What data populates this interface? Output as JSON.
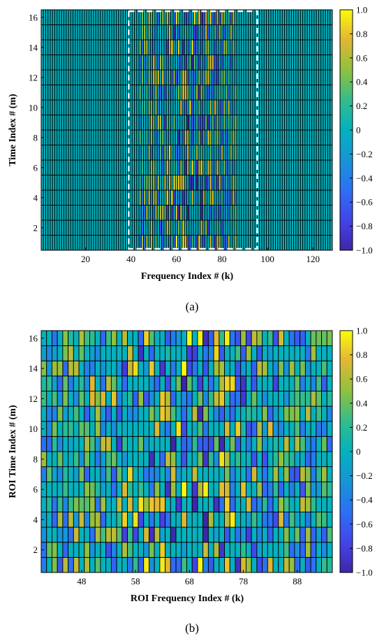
{
  "chart_data": [
    {
      "type": "heatmap",
      "panel_label": "(a)",
      "xlabel": "Frequency Index # (k)",
      "ylabel": "Time Index # (m)",
      "xlim": [
        0.5,
        128.5
      ],
      "ylim": [
        0.5,
        16.5
      ],
      "x_ticks": [
        20,
        40,
        60,
        80,
        100,
        120
      ],
      "y_ticks": [
        2,
        4,
        6,
        8,
        10,
        12,
        14,
        16
      ],
      "columns": 128,
      "rows": 16,
      "roi_box": {
        "x_range": [
          39,
          95
        ],
        "y_range": [
          1,
          16
        ]
      },
      "active_range": [
        44,
        86
      ],
      "colorbar": {
        "range": [
          -1.0,
          1.0
        ],
        "ticks": [
          "1.0",
          "0.8",
          "0.6",
          "0.4",
          "0.2",
          "0",
          "-0.2",
          "-0.4",
          "-0.6",
          "-0.8",
          "-1.0"
        ]
      },
      "grid": true
    },
    {
      "type": "heatmap",
      "panel_label": "(b)",
      "xlabel": "ROI Frequency Index # (k)",
      "ylabel": "ROI Time Index # (m)",
      "xlim": [
        40.5,
        94.5
      ],
      "ylim": [
        0.5,
        16.5
      ],
      "x_ticks": [
        48,
        58,
        68,
        78,
        88
      ],
      "y_ticks": [
        2,
        4,
        6,
        8,
        10,
        12,
        14,
        16
      ],
      "columns": 54,
      "rows": 16,
      "colorbar": {
        "range": [
          -1.0,
          1.0
        ],
        "ticks": [
          "1.0",
          "0.8",
          "0.6",
          "0.4",
          "0.2",
          "0",
          "-0.2",
          "-0.4",
          "-0.6",
          "-0.8",
          "-1.0"
        ]
      },
      "grid": true
    }
  ]
}
